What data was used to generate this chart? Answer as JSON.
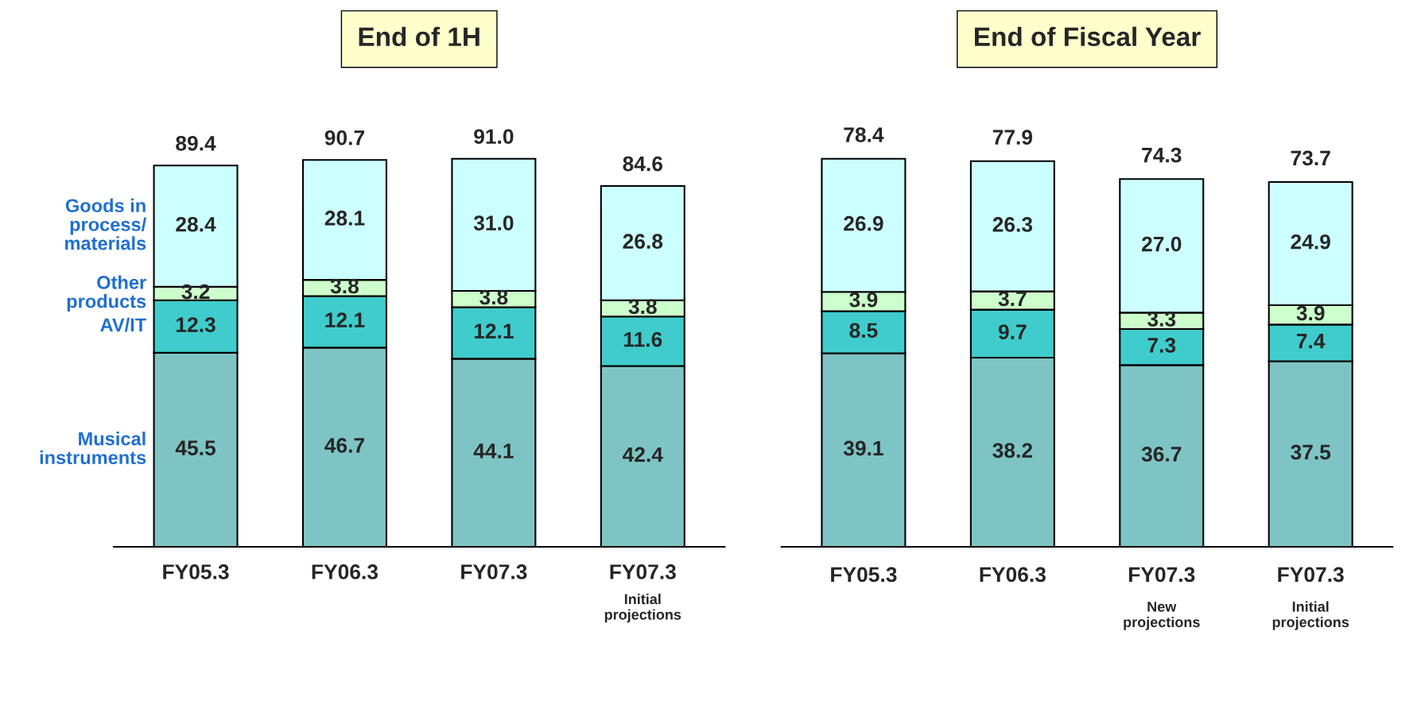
{
  "chart_data": [
    {
      "type": "bar",
      "title": "End of 1H",
      "stacked": true,
      "legend": false,
      "grid": false,
      "categories": [
        "FY05.3",
        "FY06.3",
        "FY07.3",
        "FY07.3\nInitial\nprojections"
      ],
      "series": [
        {
          "name": "Musical\ninstruments",
          "color": "#7fc4c4",
          "values": [
            45.5,
            46.7,
            44.1,
            42.4
          ],
          "value_labels": [
            "45.5",
            "46.7",
            "44.1",
            "42.4"
          ]
        },
        {
          "name": "AV/IT",
          "color": "#40cccc",
          "values": [
            12.3,
            12.1,
            12.1,
            11.6
          ],
          "value_labels": [
            "12.3",
            "12.1",
            "12.1",
            "11.6"
          ]
        },
        {
          "name": "Other\nproducts",
          "color": "#ccffcc",
          "values": [
            3.2,
            3.8,
            3.8,
            3.8
          ],
          "value_labels": [
            "3.2",
            "3.8",
            "3.8",
            "3.8"
          ]
        },
        {
          "name": "Goods in\nprocess/\nmaterials",
          "color": "#ccffff",
          "values": [
            28.4,
            28.1,
            31.0,
            26.8
          ],
          "value_labels": [
            "28.4",
            "28.1",
            "31.0",
            "26.8"
          ]
        }
      ],
      "totals": [
        "89.4",
        "90.7",
        "91.0",
        "84.6"
      ]
    },
    {
      "type": "bar",
      "title": "End of Fiscal Year",
      "stacked": true,
      "legend": false,
      "grid": false,
      "categories": [
        "FY05.3",
        "FY06.3",
        "FY07.3\nNew\nprojections",
        "FY07.3\nInitial\nprojections"
      ],
      "series": [
        {
          "color": "#7fc4c4",
          "values": [
            39.1,
            38.2,
            36.7,
            37.5
          ],
          "value_labels": [
            "39.1",
            "38.2",
            "36.7",
            "37.5"
          ]
        },
        {
          "color": "#40cccc",
          "values": [
            8.5,
            9.7,
            7.3,
            7.4
          ],
          "value_labels": [
            "8.5",
            "9.7",
            "7.3",
            "7.4"
          ]
        },
        {
          "color": "#ccffcc",
          "values": [
            3.9,
            3.7,
            3.3,
            3.9
          ],
          "value_labels": [
            "3.9",
            "3.7",
            "3.3",
            "3.9"
          ]
        },
        {
          "color": "#ccffff",
          "values": [
            26.9,
            26.3,
            27.0,
            24.9
          ],
          "value_labels": [
            "26.9",
            "26.3",
            "27.0",
            "24.9"
          ]
        }
      ],
      "totals": [
        "78.4",
        "77.9",
        "74.3",
        "73.7"
      ]
    }
  ]
}
